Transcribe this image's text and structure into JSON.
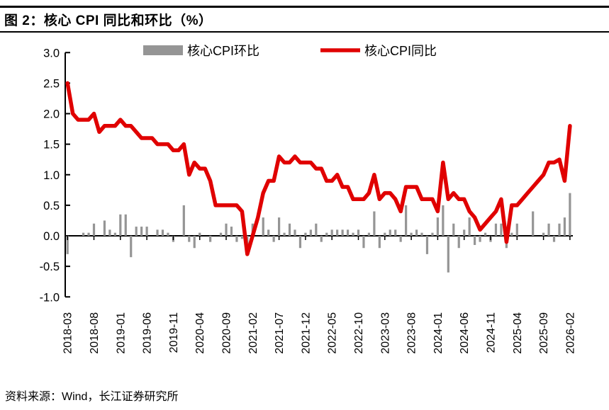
{
  "title": "图 2：核心 CPI 同比和环比（%）",
  "source": "资料来源：Wind，长江证券研究所",
  "chart_data": {
    "type": "combo",
    "title": "图 2：核心 CPI 同比和环比（%）",
    "grid": false,
    "legend_position": "top-center",
    "ylim": [
      -1.0,
      3.0
    ],
    "ytick_labels": [
      "3.0",
      "2.5",
      "2.0",
      "1.5",
      "1.0",
      "0.5",
      "0.0",
      "-0.5",
      "-1.0"
    ],
    "xtick_every": 5,
    "xtick_labels": [
      "2018-03",
      "2018-08",
      "2019-01",
      "2019-06",
      "2019-11",
      "2020-04",
      "2020-09",
      "2021-02",
      "2021-07",
      "2021-12",
      "2022-05",
      "2022-10",
      "2023-03",
      "2023-08",
      "2024-01",
      "2024-06",
      "2024-11",
      "2025-04",
      "2025-09",
      "2026-02"
    ],
    "categories": [
      "2018-03",
      "2018-04",
      "2018-05",
      "2018-06",
      "2018-07",
      "2018-08",
      "2018-09",
      "2018-10",
      "2018-11",
      "2018-12",
      "2019-01",
      "2019-02",
      "2019-03",
      "2019-04",
      "2019-05",
      "2019-06",
      "2019-07",
      "2019-08",
      "2019-09",
      "2019-10",
      "2019-11",
      "2019-12",
      "2020-01",
      "2020-02",
      "2020-03",
      "2020-04",
      "2020-05",
      "2020-06",
      "2020-07",
      "2020-08",
      "2020-09",
      "2020-10",
      "2020-11",
      "2020-12",
      "2021-01",
      "2021-02",
      "2021-03",
      "2021-04",
      "2021-05",
      "2021-06",
      "2021-07",
      "2021-08",
      "2021-09",
      "2021-10",
      "2021-11",
      "2021-12",
      "2022-01",
      "2022-02",
      "2022-03",
      "2022-04",
      "2022-05",
      "2022-06",
      "2022-07",
      "2022-08",
      "2022-09",
      "2022-10",
      "2022-11",
      "2022-12",
      "2023-01",
      "2023-02",
      "2023-03",
      "2023-04",
      "2023-05",
      "2023-06",
      "2023-07",
      "2023-08",
      "2023-09",
      "2023-10",
      "2023-11",
      "2023-12",
      "2024-01",
      "2024-02",
      "2024-03",
      "2024-04",
      "2024-05",
      "2024-06",
      "2024-07",
      "2024-08",
      "2024-09",
      "2024-10",
      "2024-11",
      "2024-12",
      "2025-01",
      "2025-02",
      "2025-03",
      "2025-04",
      "2025-05",
      "2025-06",
      "2025-07",
      "2025-08",
      "2025-09",
      "2025-10",
      "2025-11",
      "2025-12",
      "2026-01",
      "2026-02"
    ],
    "series": [
      {
        "name": "核心CPI环比",
        "type": "bar",
        "color": "#959595",
        "values": [
          -0.3,
          0.0,
          0.0,
          0.05,
          0.05,
          0.2,
          0.0,
          0.25,
          0.1,
          0.05,
          0.35,
          0.35,
          -0.35,
          0.15,
          0.15,
          0.15,
          0.0,
          0.1,
          0.1,
          0.05,
          -0.1,
          0.0,
          0.5,
          -0.1,
          -0.2,
          0.05,
          0.0,
          -0.1,
          0.0,
          0.05,
          0.2,
          0.15,
          -0.1,
          -0.05,
          -0.15,
          0.2,
          0.0,
          0.3,
          0.1,
          -0.1,
          0.3,
          0.05,
          0.2,
          0.1,
          -0.2,
          0.05,
          0.1,
          0.2,
          -0.1,
          0.05,
          0.1,
          0.1,
          0.1,
          0.1,
          0.05,
          0.1,
          -0.2,
          0.05,
          0.4,
          -0.2,
          0.05,
          0.1,
          0.1,
          -0.1,
          0.5,
          0.05,
          0.1,
          0.05,
          -0.3,
          0.05,
          0.3,
          0.5,
          -0.6,
          0.2,
          -0.2,
          0.1,
          0.3,
          -0.15,
          -0.1,
          0.05,
          -0.1,
          0.2,
          0.2,
          -0.2,
          0.05,
          0.2,
          0.0,
          0.0,
          0.4,
          0.0,
          0.05,
          0.2,
          -0.1,
          0.2,
          0.3,
          0.7
        ]
      },
      {
        "name": "核心CPI同比",
        "type": "line",
        "color": "#e00000",
        "values": [
          2.5,
          2.0,
          1.9,
          1.9,
          1.9,
          2.0,
          1.7,
          1.8,
          1.8,
          1.8,
          1.9,
          1.8,
          1.8,
          1.7,
          1.6,
          1.6,
          1.6,
          1.5,
          1.5,
          1.5,
          1.4,
          1.4,
          1.5,
          1.0,
          1.2,
          1.1,
          1.1,
          0.9,
          0.5,
          0.5,
          0.5,
          0.5,
          0.5,
          0.4,
          -0.3,
          0.0,
          0.3,
          0.7,
          0.9,
          0.9,
          1.3,
          1.2,
          1.2,
          1.3,
          1.2,
          1.2,
          1.2,
          1.1,
          1.1,
          0.9,
          0.9,
          1.0,
          0.8,
          0.8,
          0.6,
          0.6,
          0.6,
          0.7,
          1.0,
          0.6,
          0.7,
          0.7,
          0.6,
          0.4,
          0.8,
          0.8,
          0.8,
          0.6,
          0.6,
          0.6,
          0.4,
          1.2,
          0.6,
          0.7,
          0.6,
          0.6,
          0.4,
          0.3,
          0.1,
          0.2,
          0.3,
          0.4,
          0.6,
          -0.1,
          0.5,
          0.5,
          0.6,
          0.7,
          0.8,
          0.9,
          1.0,
          1.2,
          1.2,
          1.25,
          0.9,
          1.8
        ]
      }
    ]
  }
}
